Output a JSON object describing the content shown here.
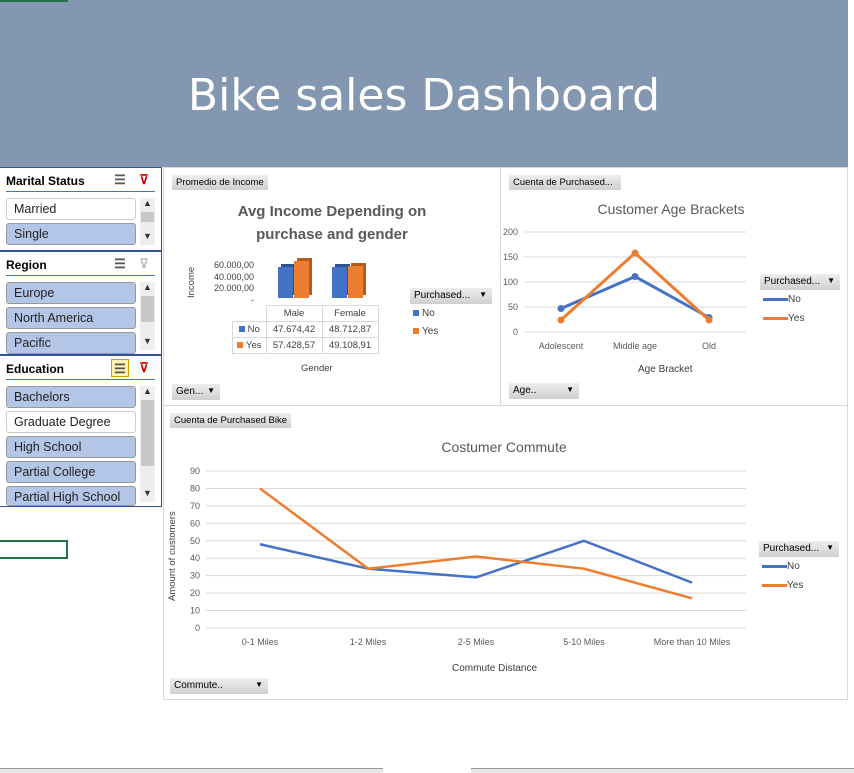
{
  "header": {
    "title": "Bike sales Dashboard"
  },
  "colors": {
    "no": "#4472c4",
    "yes": "#ed7d31",
    "header": "#8497b0"
  },
  "slicers": [
    {
      "title": "Marital Status",
      "items": [
        {
          "label": "Married",
          "selected": false
        },
        {
          "label": "Single",
          "selected": true
        }
      ]
    },
    {
      "title": "Region",
      "items": [
        {
          "label": "Europe",
          "selected": true
        },
        {
          "label": "North America",
          "selected": true
        },
        {
          "label": "Pacific",
          "selected": true
        }
      ]
    },
    {
      "title": "Education",
      "items": [
        {
          "label": "Bachelors",
          "selected": true
        },
        {
          "label": "Graduate Degree",
          "selected": false
        },
        {
          "label": "High School",
          "selected": true
        },
        {
          "label": "Partial College",
          "selected": true
        },
        {
          "label": "Partial High School",
          "selected": true
        }
      ]
    }
  ],
  "income_panel": {
    "field_button": "Promedio de Income",
    "axis_button": "Gen...",
    "legend_button": "Purchased...",
    "legend": [
      "No",
      "Yes"
    ]
  },
  "age_panel": {
    "field_button": "Cuenta de Purchased...",
    "axis_button": "Age..",
    "legend_button": "Purchased...",
    "legend": [
      "No",
      "Yes"
    ]
  },
  "commute_panel": {
    "field_button": "Cuenta de Purchased Bike",
    "axis_button": "Commute..",
    "legend_button": "Purchased...",
    "legend": [
      "No",
      "Yes"
    ]
  },
  "chart_data": [
    {
      "type": "bar",
      "title": "Avg Income Depending on purchase and gender",
      "xlabel": "Gender",
      "ylabel": "Income",
      "categories": [
        "Male",
        "Female"
      ],
      "yticks": [
        "60.000,00",
        "40.000,00",
        "20.000,00",
        "-"
      ],
      "series": [
        {
          "name": "No",
          "values": [
            47674.42,
            48712.87
          ],
          "labels": [
            "47.674,42",
            "48.712,87"
          ]
        },
        {
          "name": "Yes",
          "values": [
            57428.57,
            49108.91
          ],
          "labels": [
            "57.428,57",
            "49.108,91"
          ]
        }
      ]
    },
    {
      "type": "line",
      "title": "Customer Age Brackets",
      "xlabel": "Age Bracket",
      "ylabel": "",
      "categories": [
        "Adolescent",
        "Middle age",
        "Old"
      ],
      "ylim": [
        0,
        200
      ],
      "yticks": [
        0,
        50,
        100,
        150,
        200
      ],
      "series": [
        {
          "name": "No",
          "values": [
            47,
            111,
            29
          ]
        },
        {
          "name": "Yes",
          "values": [
            24,
            158,
            24
          ]
        }
      ]
    },
    {
      "type": "line",
      "title": "Costumer Commute",
      "xlabel": "Commute Distance",
      "ylabel": "Amount of customers",
      "categories": [
        "0-1 Miles",
        "1-2 Miles",
        "2-5 Miles",
        "5-10 Miles",
        "More than 10 Miles"
      ],
      "ylim": [
        0,
        90
      ],
      "yticks": [
        0,
        10,
        20,
        30,
        40,
        50,
        60,
        70,
        80,
        90
      ],
      "series": [
        {
          "name": "No",
          "values": [
            48,
            34,
            29,
            50,
            26
          ]
        },
        {
          "name": "Yes",
          "values": [
            80,
            34,
            41,
            34,
            17
          ]
        }
      ]
    }
  ]
}
